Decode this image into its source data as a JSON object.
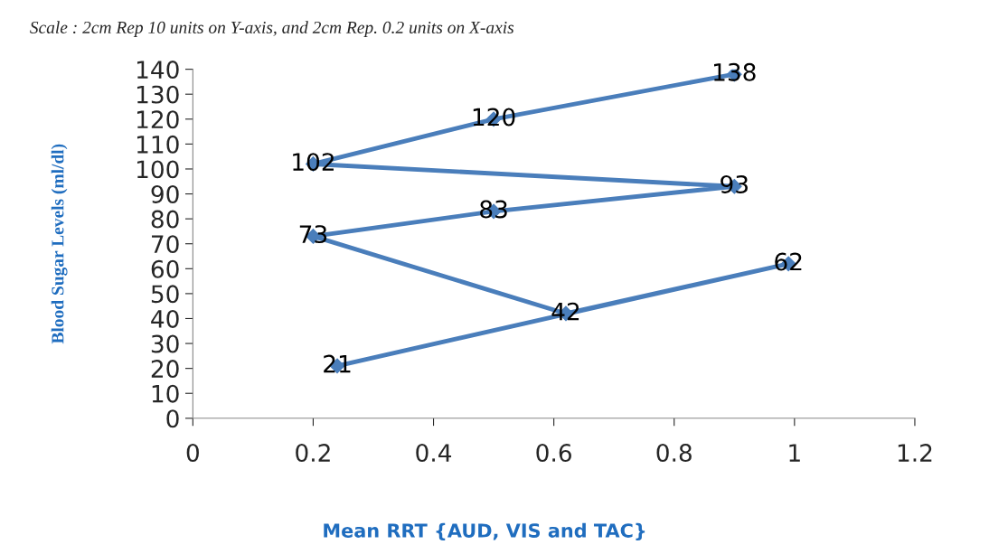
{
  "chart_data": {
    "type": "line",
    "annotations": [
      "Scale : 2cm Rep 10 units on Y-axis, and 2cm Rep. 0.2 units on X-axis"
    ],
    "xlabel": "Mean RRT {AUD, VIS and TAC}",
    "ylabel": "Blood Sugar Levels (ml/dl)",
    "series": [
      {
        "color": "#4a7ebb",
        "x": [
          0.24,
          0.99,
          0.62,
          0.2,
          0.5,
          0.9,
          0.2,
          0.5,
          0.9
        ],
        "values": [
          21,
          62,
          42,
          73,
          83,
          93,
          102,
          120,
          138
        ]
      }
    ],
    "xlim": [
      0,
      1.2
    ],
    "xticks": [
      0,
      0.2,
      0.4,
      0.6,
      0.8,
      1,
      1.2
    ],
    "ylim": [
      0,
      140
    ],
    "yticks": [
      0,
      10,
      20,
      30,
      40,
      50,
      60,
      70,
      80,
      90,
      100,
      110,
      120,
      130,
      140
    ],
    "data_labels": true,
    "marker": "diamond",
    "line_style": "solid",
    "grid": false,
    "legend": false
  }
}
